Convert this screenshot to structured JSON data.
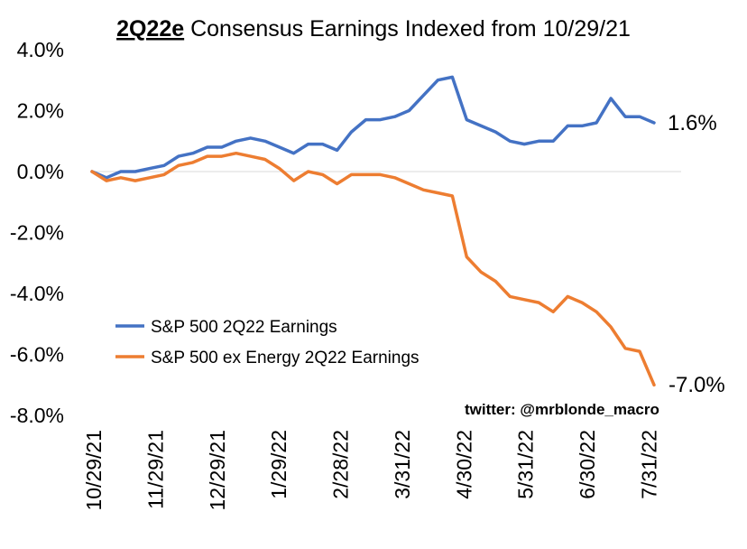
{
  "chart_data": {
    "type": "line",
    "title_bold": "2Q22e",
    "title_rest": " Consensus Earnings Indexed from 10/29/21",
    "ylim": [
      -0.08,
      0.04
    ],
    "yticks": [
      "4.0%",
      "2.0%",
      "0.0%",
      "-2.0%",
      "-4.0%",
      "-6.0%",
      "-8.0%"
    ],
    "ytick_values": [
      0.04,
      0.02,
      0.0,
      -0.02,
      -0.04,
      -0.06,
      -0.08
    ],
    "xticks": [
      "10/29/21",
      "11/29/21",
      "12/29/21",
      "1/29/22",
      "2/28/22",
      "3/31/22",
      "4/30/22",
      "5/31/22",
      "6/30/22",
      "7/31/22"
    ],
    "grid": false,
    "zero_line": true,
    "legend_placement": "lower-left",
    "credit": "twitter: @mrblonde_macro",
    "series": [
      {
        "name": "S&P 500 2Q22 Earnings",
        "color": "#4472C4",
        "end_label": "1.6%",
        "x": [
          0,
          1,
          2,
          3,
          4,
          5,
          6,
          7,
          8,
          9,
          10,
          11,
          12,
          13,
          14,
          15,
          16,
          17,
          18,
          19,
          20,
          21,
          22,
          23,
          24,
          25,
          26,
          27,
          28,
          29,
          30,
          31,
          32,
          33,
          34,
          35,
          36,
          37,
          38,
          39
        ],
        "values": [
          0.0,
          -0.002,
          0.0,
          0.0,
          0.001,
          0.002,
          0.005,
          0.006,
          0.008,
          0.008,
          0.01,
          0.011,
          0.01,
          0.008,
          0.006,
          0.009,
          0.009,
          0.007,
          0.013,
          0.017,
          0.017,
          0.018,
          0.02,
          0.025,
          0.03,
          0.031,
          0.017,
          0.015,
          0.013,
          0.01,
          0.009,
          0.01,
          0.01,
          0.015,
          0.015,
          0.016,
          0.024,
          0.018,
          0.018,
          0.016
        ]
      },
      {
        "name": "S&P 500 ex Energy 2Q22 Earnings",
        "color": "#ED7D31",
        "end_label": "-7.0%",
        "x": [
          0,
          1,
          2,
          3,
          4,
          5,
          6,
          7,
          8,
          9,
          10,
          11,
          12,
          13,
          14,
          15,
          16,
          17,
          18,
          19,
          20,
          21,
          22,
          23,
          24,
          25,
          26,
          27,
          28,
          29,
          30,
          31,
          32,
          33,
          34,
          35,
          36,
          37,
          38,
          39
        ],
        "values": [
          0.0,
          -0.003,
          -0.002,
          -0.003,
          -0.002,
          -0.001,
          0.002,
          0.003,
          0.005,
          0.005,
          0.006,
          0.005,
          0.004,
          0.001,
          -0.003,
          0.0,
          -0.001,
          -0.004,
          -0.001,
          -0.001,
          -0.001,
          -0.002,
          -0.004,
          -0.006,
          -0.007,
          -0.008,
          -0.028,
          -0.033,
          -0.036,
          -0.041,
          -0.042,
          -0.043,
          -0.046,
          -0.041,
          -0.043,
          -0.046,
          -0.051,
          -0.058,
          -0.059,
          -0.07
        ]
      }
    ]
  }
}
